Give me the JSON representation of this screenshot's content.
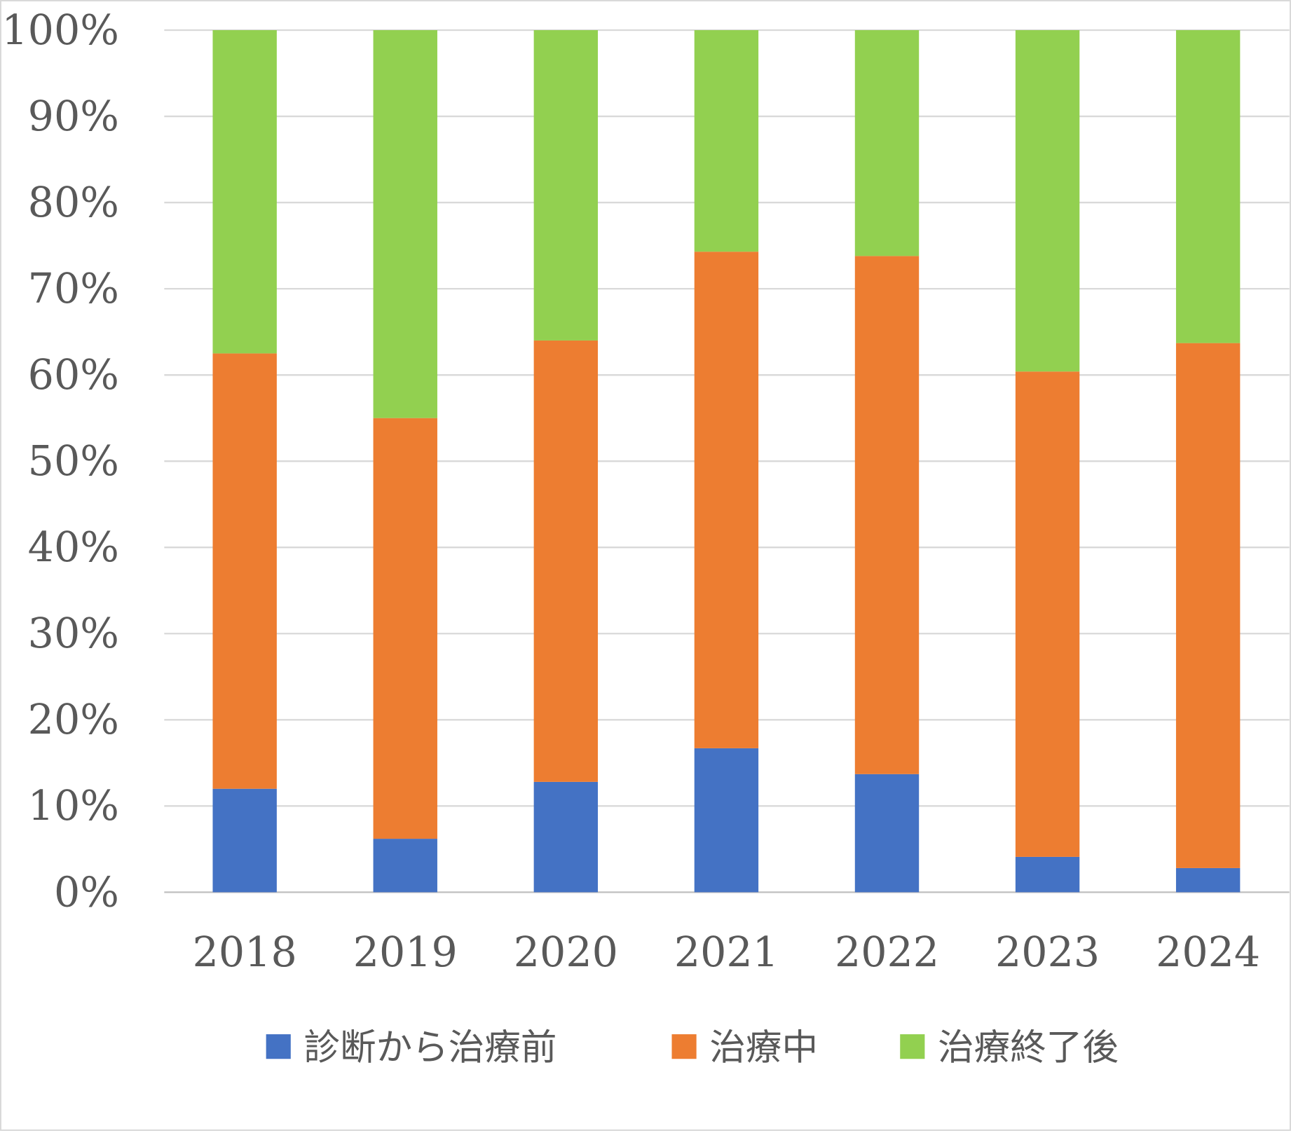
{
  "chart_data": {
    "type": "bar",
    "stacked": true,
    "percent": true,
    "title": "",
    "xlabel": "",
    "ylabel": "",
    "ylim": [
      0,
      100
    ],
    "yticks": [
      "0%",
      "10%",
      "20%",
      "30%",
      "40%",
      "50%",
      "60%",
      "70%",
      "80%",
      "90%",
      "100%"
    ],
    "categories": [
      "2018",
      "2019",
      "2020",
      "2021",
      "2022",
      "2023",
      "2024"
    ],
    "series": [
      {
        "name": "診断から治療前",
        "color": "#4472C4",
        "values": [
          12.0,
          6.2,
          12.8,
          16.7,
          13.7,
          4.1,
          2.8
        ]
      },
      {
        "name": "治療中",
        "color": "#ED7D31",
        "values": [
          50.5,
          48.8,
          51.2,
          57.6,
          60.1,
          56.3,
          60.9
        ]
      },
      {
        "name": "治療終了後",
        "color": "#92D050",
        "values": [
          37.5,
          45.0,
          36.0,
          25.7,
          26.2,
          39.6,
          36.3
        ]
      }
    ],
    "grid": true,
    "legend": "bottom"
  }
}
